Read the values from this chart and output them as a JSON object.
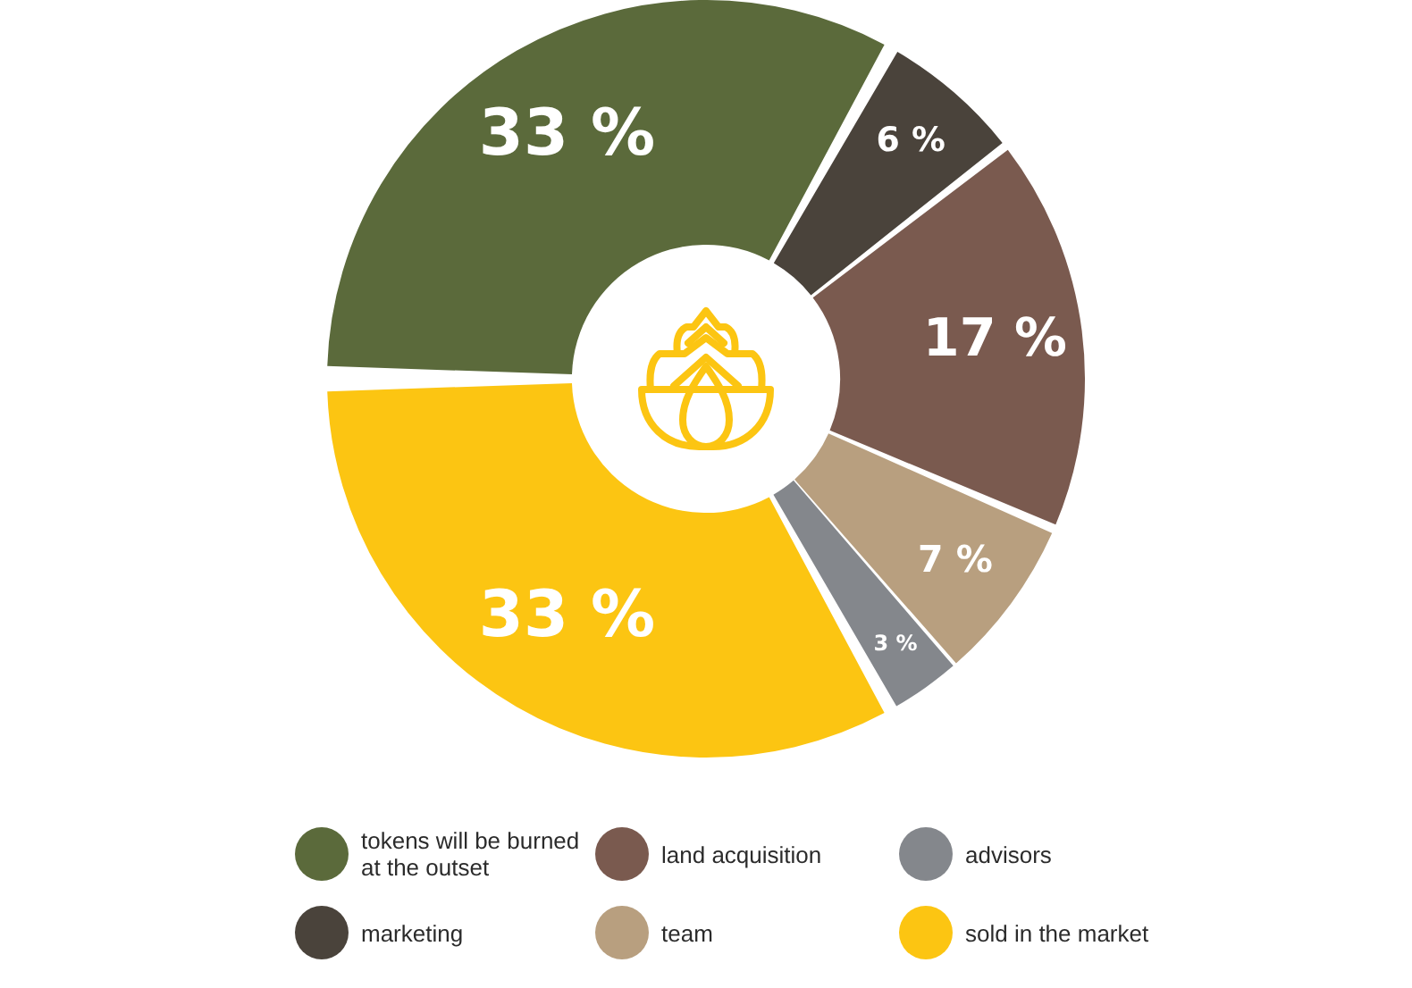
{
  "chart_data": {
    "type": "donut",
    "categories": [
      "tokens will be burned at the outset",
      "marketing",
      "land acquisition",
      "team",
      "advisors",
      "sold in the market"
    ],
    "values": [
      33,
      6,
      17,
      7,
      3,
      33
    ],
    "colors": [
      "#5b6a3b",
      "#4a433b",
      "#7a5a4f",
      "#b89f7f",
      "#84878c",
      "#fcc512"
    ],
    "value_labels": [
      "33 %",
      "6 %",
      "17 %",
      "7 %",
      "3 %",
      "33 %"
    ],
    "legend": "bottom"
  }
}
